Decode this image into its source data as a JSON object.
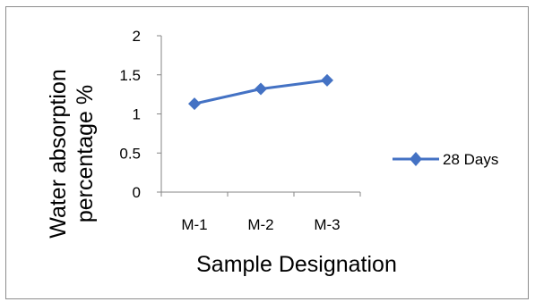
{
  "chart_data": {
    "type": "line",
    "categories": [
      "M-1",
      "M-2",
      "M-3"
    ],
    "series": [
      {
        "name": "28 Days",
        "values": [
          1.13,
          1.32,
          1.43
        ],
        "color": "#4472c4",
        "marker": "diamond"
      }
    ],
    "ylim": [
      0,
      2
    ],
    "yticks": [
      0,
      0.5,
      1,
      1.5,
      2
    ],
    "ytick_labels": [
      "0",
      "0.5",
      "1",
      "1.5",
      "2"
    ],
    "ylabel_lines": [
      "Water absorption",
      "percentage %"
    ],
    "xlabel": "Sample Designation",
    "legend": "right",
    "grid": false
  }
}
